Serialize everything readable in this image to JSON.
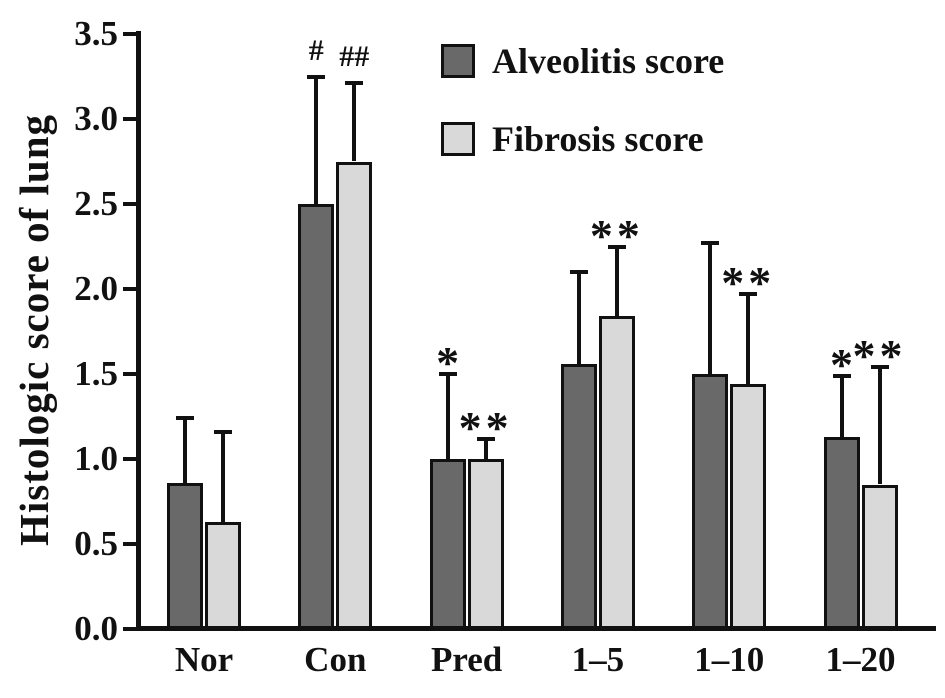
{
  "chart_data": {
    "type": "bar",
    "title": "",
    "xlabel": "",
    "ylabel": "Histologic score of lung",
    "ylim": [
      0,
      3.5
    ],
    "grid": false,
    "legend_position": "top-center-inside",
    "categories": [
      "Nor",
      "Con",
      "Pred",
      "1–5",
      "1–10",
      "1–20"
    ],
    "yticks": [
      "0.0",
      "0.5",
      "1.0",
      "1.5",
      "2.0",
      "2.5",
      "3.0",
      "3.5"
    ],
    "ytick_values": [
      0,
      0.5,
      1.0,
      1.5,
      2.0,
      2.5,
      3.0,
      3.5
    ],
    "series": [
      {
        "name": "Alveolitis score",
        "color": "#696969",
        "values": [
          0.86,
          2.5,
          1.0,
          1.56,
          1.5,
          1.13
        ],
        "errors_upper": [
          0.38,
          0.75,
          0.5,
          0.54,
          0.77,
          0.36
        ],
        "sig_markers": [
          "",
          "#",
          "*",
          "",
          "",
          "*"
        ]
      },
      {
        "name": "Fibrosis score",
        "color": "#d9d9d9",
        "values": [
          0.63,
          2.75,
          1.0,
          1.84,
          1.44,
          0.85
        ],
        "errors_upper": [
          0.53,
          0.46,
          0.12,
          0.41,
          0.53,
          0.69
        ],
        "sig_markers": [
          "",
          "##",
          "**",
          "**",
          "**",
          "**"
        ]
      }
    ]
  }
}
